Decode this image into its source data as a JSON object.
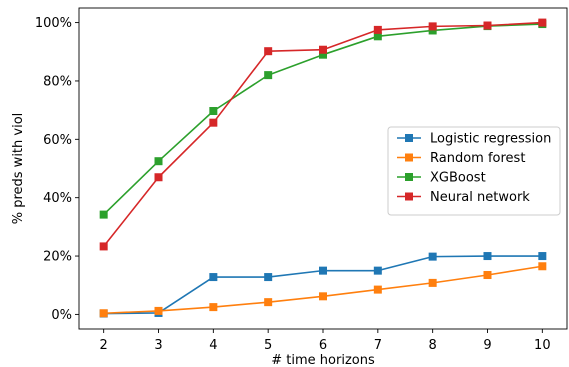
{
  "chart_data": {
    "type": "line",
    "xlabel": "# time horizons",
    "ylabel": "% preds with viol",
    "x": [
      2,
      3,
      4,
      5,
      6,
      7,
      8,
      9,
      10
    ],
    "xlim": [
      1.55,
      10.45
    ],
    "ylim": [
      -0.05,
      1.05
    ],
    "yticks": [
      0,
      0.2,
      0.4,
      0.6,
      0.8,
      1.0
    ],
    "ytick_labels": [
      "0%",
      "20%",
      "40%",
      "60%",
      "80%",
      "100%"
    ],
    "xtick_labels": [
      "2",
      "3",
      "4",
      "5",
      "6",
      "7",
      "8",
      "9",
      "10"
    ],
    "grid": false,
    "legend_position": "center-right",
    "series": [
      {
        "name": "Logistic regression",
        "color": "#1f77b4",
        "values": [
          0.003,
          0.005,
          0.128,
          0.128,
          0.15,
          0.15,
          0.198,
          0.2,
          0.2
        ]
      },
      {
        "name": "Random forest",
        "color": "#ff7f0e",
        "values": [
          0.004,
          0.012,
          0.025,
          0.042,
          0.062,
          0.085,
          0.108,
          0.135,
          0.165
        ]
      },
      {
        "name": "XGBoost",
        "color": "#2ca02c",
        "values": [
          0.342,
          0.525,
          0.697,
          0.82,
          0.89,
          0.953,
          0.973,
          0.988,
          0.995
        ]
      },
      {
        "name": "Neural network",
        "color": "#d62728",
        "values": [
          0.233,
          0.47,
          0.657,
          0.902,
          0.907,
          0.975,
          0.987,
          0.99,
          1.0
        ]
      }
    ]
  }
}
